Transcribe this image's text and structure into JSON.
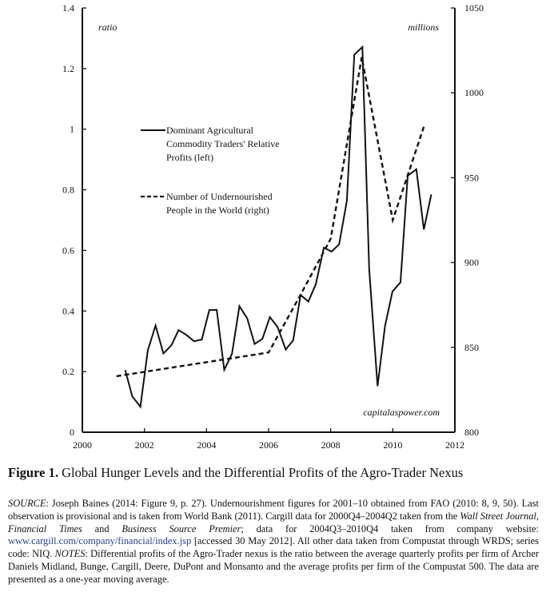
{
  "chart_data": {
    "type": "line",
    "title": "Figure 1. Global Hunger Levels and the Differential Profits of the Agro-Trader Nexus",
    "xlim": [
      2000,
      2012
    ],
    "x_ticks": [
      "2000",
      "2002",
      "2004",
      "2006",
      "2008",
      "2010",
      "2012"
    ],
    "y_left": {
      "label": "ratio",
      "lim": [
        0,
        1.4
      ],
      "ticks": [
        "0",
        "0.2",
        "0.4",
        "0.6",
        "0.8",
        "1",
        "1.2",
        "1.4"
      ]
    },
    "y_right": {
      "label": "millions",
      "lim": [
        800,
        1050
      ],
      "ticks": [
        "800",
        "850",
        "900",
        "950",
        "1000",
        "1050"
      ]
    },
    "grid": false,
    "legend_placement": "upper-left-center",
    "watermark": "capitalaspower.com",
    "series": [
      {
        "name": "Dominant Agricultural Commodity Traders' Relative Profits (left)",
        "axis": "left",
        "style": "solid",
        "x": [
          2001.38,
          2001.61,
          2001.87,
          2002.11,
          2002.36,
          2002.61,
          2002.87,
          2003.1,
          2003.35,
          2003.6,
          2003.85,
          2004.09,
          2004.33,
          2004.57,
          2004.82,
          2005.06,
          2005.31,
          2005.55,
          2005.8,
          2006.04,
          2006.29,
          2006.55,
          2006.79,
          2007.03,
          2007.28,
          2007.52,
          2007.78,
          2008.03,
          2008.27,
          2008.52,
          2008.76,
          2009.02,
          2009.24,
          2009.51,
          2009.75,
          2009.99,
          2010.25,
          2010.48,
          2010.76,
          2011.0,
          2011.24
        ],
        "y": [
          0.205,
          0.118,
          0.084,
          0.27,
          0.352,
          0.26,
          0.287,
          0.337,
          0.321,
          0.3,
          0.306,
          0.403,
          0.404,
          0.206,
          0.259,
          0.416,
          0.376,
          0.291,
          0.308,
          0.38,
          0.347,
          0.273,
          0.303,
          0.453,
          0.431,
          0.488,
          0.609,
          0.596,
          0.62,
          0.763,
          1.246,
          1.271,
          0.539,
          0.152,
          0.35,
          0.464,
          0.495,
          0.846,
          0.868,
          0.669,
          0.785
        ]
      },
      {
        "name": "Number of Undernourished People in the World (right)",
        "axis": "right",
        "style": "dashed",
        "x": [
          2001.1,
          2006.0,
          2007.0,
          2008.0,
          2009.0,
          2010.0,
          2011.0
        ],
        "y": [
          833,
          847,
          880,
          914,
          1021,
          925,
          980
        ]
      }
    ]
  },
  "legend": {
    "solid_lines": [
      "Dominant Agricultural",
      "Commodity Traders' Relative",
      "Profits (left)"
    ],
    "dashed_lines": [
      "Number of Undernourished",
      "People in the World (right)"
    ]
  },
  "caption": {
    "label": "Figure 1.",
    "text": " Global Hunger Levels and the Differential Profits of the Agro-Trader Nexus"
  },
  "notes": [
    {
      "t": "SOURCE",
      "s": "it"
    },
    {
      "t": ": Joseph Baines (2014: Figure 9, p. 27). Undernourishment figures for 2001–10 obtained from FAO (2010: 8, 9, 50). Last observation is provisional and is taken from World Bank (2011). Cargill data for 2000Q4–2004Q2 taken from the "
    },
    {
      "t": "Wall Street Journal",
      "s": "it"
    },
    {
      "t": ", "
    },
    {
      "t": "Financial Times",
      "s": "it"
    },
    {
      "t": " and "
    },
    {
      "t": "Business Source Premier",
      "s": "it"
    },
    {
      "t": "; data for 2004Q3–2010Q4 taken from company website: "
    },
    {
      "t": "www.cargill.com/company/financial/index.jsp",
      "s": "link"
    },
    {
      "t": " [accessed 30 May 2012]. All other data taken from Compustat through WRDS; series code: NIQ. "
    },
    {
      "t": "NOTES",
      "s": "it"
    },
    {
      "t": ": Differential profits of the Agro-Trader nexus is the ratio between the average quarterly profits per firm of Archer Daniels Midland, Bunge, Cargill, Deere, DuPont and Monsanto and the average profits per firm of the Compustat 500. The data are presented as a one-year moving average."
    }
  ]
}
